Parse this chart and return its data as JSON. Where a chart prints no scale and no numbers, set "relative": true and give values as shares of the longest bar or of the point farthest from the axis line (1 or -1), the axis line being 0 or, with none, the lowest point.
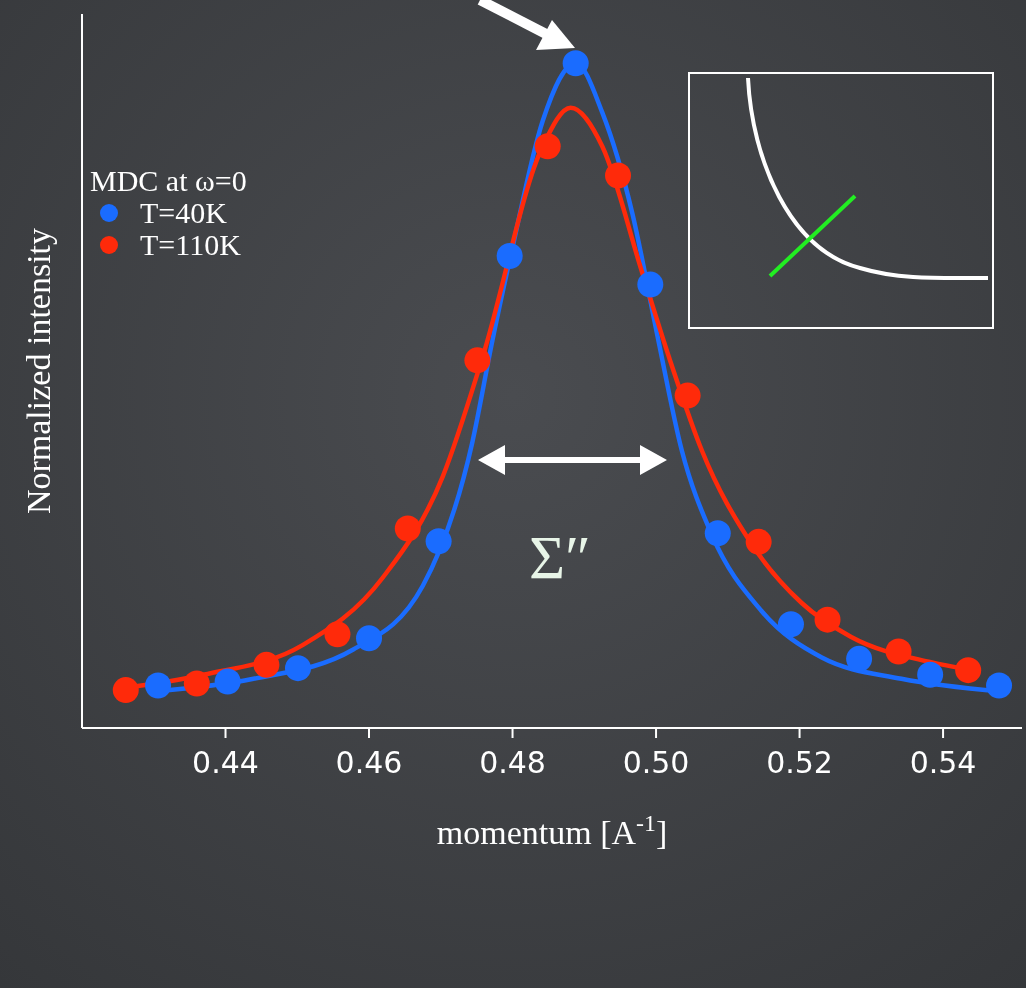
{
  "chart_data": {
    "type": "scatter",
    "relative": true,
    "xlabel": "momentum [A$^{-1}$]",
    "ylabel": "Normalized intensity",
    "legend_title": "MDC at ω=0",
    "legend": "top left",
    "tick_labels": "x",
    "grid": false,
    "marker": "circle",
    "xlim": [
      0.42,
      0.551
    ],
    "xticks": [
      {
        "value": 0.44,
        "label": "0.44"
      },
      {
        "value": 0.46,
        "label": "0.46"
      },
      {
        "value": 0.48,
        "label": "0.48"
      },
      {
        "value": 0.5,
        "label": "0.50"
      },
      {
        "value": 0.52,
        "label": "0.52"
      },
      {
        "value": 0.54,
        "label": "0.54"
      }
    ],
    "annotations": [
      "Σ″"
    ],
    "series": [
      {
        "name": "T=40K",
        "color": "#1a6cff",
        "x": [
          0.4306,
          0.4403,
          0.4501,
          0.46,
          0.4697,
          0.4796,
          0.4888,
          0.4992,
          0.5086,
          0.5188,
          0.5283,
          0.5382,
          0.5478
        ],
        "values": [
          0.064,
          0.07,
          0.09,
          0.135,
          0.281,
          0.71,
          1.0,
          0.667,
          0.293,
          0.156,
          0.104,
          0.08,
          0.064
        ]
      },
      {
        "name": "T=110K",
        "color": "#ff2a0a",
        "x": [
          0.4261,
          0.436,
          0.4457,
          0.4556,
          0.4654,
          0.4751,
          0.4849,
          0.4947,
          0.5044,
          0.5143,
          0.5239,
          0.5338,
          0.5435
        ],
        "values": [
          0.057,
          0.067,
          0.095,
          0.141,
          0.3,
          0.553,
          0.875,
          0.831,
          0.5,
          0.28,
          0.163,
          0.115,
          0.087
        ]
      },
      {
        "type": "line",
        "marker": "none",
        "color": "#1a6cff",
        "x": [
          0.43,
          0.4439,
          0.4578,
          0.4675,
          0.4744,
          0.4772,
          0.48,
          0.4842,
          0.4888,
          0.4925,
          0.4967,
          0.5001,
          0.5036,
          0.5078,
          0.5147,
          0.5231,
          0.5342,
          0.5481
        ],
        "values": [
          0.055,
          0.074,
          0.118,
          0.214,
          0.43,
          0.583,
          0.723,
          0.913,
          1.0,
          0.926,
          0.774,
          0.595,
          0.417,
          0.29,
          0.176,
          0.106,
          0.074,
          0.055
        ]
      },
      {
        "type": "line",
        "marker": "none",
        "color": "#ff2a0a",
        "x": [
          0.4251,
          0.4369,
          0.4508,
          0.4619,
          0.4703,
          0.4758,
          0.4842,
          0.4881,
          0.4925,
          0.4981,
          0.5022,
          0.5064,
          0.5133,
          0.5203,
          0.5272,
          0.5383,
          0.5439
        ],
        "values": [
          0.059,
          0.08,
          0.125,
          0.226,
          0.379,
          0.557,
          0.875,
          0.933,
          0.875,
          0.684,
          0.545,
          0.417,
          0.277,
          0.188,
          0.137,
          0.099,
          0.087
        ]
      }
    ]
  }
}
